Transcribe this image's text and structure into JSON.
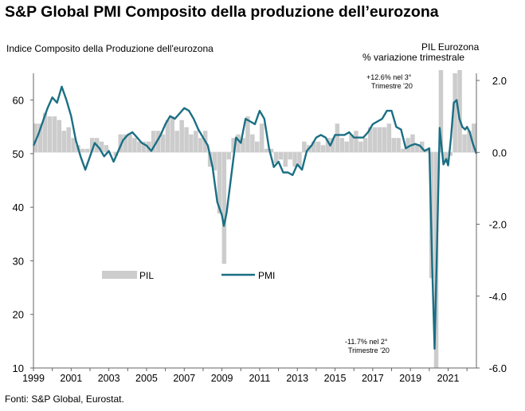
{
  "title": "S&P Global PMI Composito della produzione dell’eurozona",
  "source": "Fonti: S&P Global, Eurostat.",
  "chart_data": {
    "type": "bar+line",
    "title": "S&P Global PMI Composito della produzione dell’eurozona",
    "left_axis_label": "Indice Composito della Produzione dell'eurozona",
    "right_axis_label_line1": "PIL  Eurozona",
    "right_axis_label_line2": "% variazione trimestrale",
    "x_range": [
      1999.0,
      2022.5
    ],
    "x_ticks": [
      "1999",
      "2001",
      "2003",
      "2005",
      "2007",
      "2009",
      "2011",
      "2013",
      "2015",
      "2017",
      "2019",
      "2021"
    ],
    "left_ylim": [
      10,
      65
    ],
    "left_ticks": [
      "10",
      "20",
      "30",
      "40",
      "50",
      "60"
    ],
    "right_ylim": [
      -6.0,
      2.2
    ],
    "right_ticks": [
      "-6.0",
      "-4.0",
      "-2.0",
      "0.0",
      "2.0"
    ],
    "legend": {
      "gdp": "PIL",
      "pmi": "PMI",
      "placement": "middle-left"
    },
    "annotations": [
      {
        "line1": "+12.6%  nel 3°",
        "line2": "Trimestre  '20"
      },
      {
        "line1": "-11.7%  nel 2°",
        "line2": "Trimestre  '20"
      }
    ],
    "series": [
      {
        "name": "PIL",
        "axis": "right",
        "color": "#cccccc",
        "x": [
          1999.0,
          1999.25,
          1999.5,
          1999.75,
          2000.0,
          2000.25,
          2000.5,
          2000.75,
          2001.0,
          2001.25,
          2001.5,
          2001.75,
          2002.0,
          2002.25,
          2002.5,
          2002.75,
          2003.0,
          2003.25,
          2003.5,
          2003.75,
          2004.0,
          2004.25,
          2004.5,
          2004.75,
          2005.0,
          2005.25,
          2005.5,
          2005.75,
          2006.0,
          2006.25,
          2006.5,
          2006.75,
          2007.0,
          2007.25,
          2007.5,
          2007.75,
          2008.0,
          2008.25,
          2008.5,
          2008.75,
          2009.0,
          2009.25,
          2009.5,
          2009.75,
          2010.0,
          2010.25,
          2010.5,
          2010.75,
          2011.0,
          2011.25,
          2011.5,
          2011.75,
          2012.0,
          2012.25,
          2012.5,
          2012.75,
          2013.0,
          2013.25,
          2013.5,
          2013.75,
          2014.0,
          2014.25,
          2014.5,
          2014.75,
          2015.0,
          2015.25,
          2015.5,
          2015.75,
          2016.0,
          2016.25,
          2016.5,
          2016.75,
          2017.0,
          2017.25,
          2017.5,
          2017.75,
          2018.0,
          2018.25,
          2018.5,
          2018.75,
          2019.0,
          2019.25,
          2019.5,
          2019.75,
          2020.0,
          2020.25,
          2020.5,
          2020.75,
          2021.0,
          2021.25,
          2021.5,
          2021.75,
          2022.0,
          2022.25
        ],
        "values": [
          0.8,
          0.8,
          1.1,
          1.0,
          1.0,
          0.9,
          0.6,
          0.7,
          0.4,
          0.2,
          0.1,
          0.1,
          0.4,
          0.4,
          0.3,
          0.2,
          0.0,
          -0.1,
          0.5,
          0.5,
          0.5,
          0.4,
          0.3,
          0.3,
          0.3,
          0.6,
          0.6,
          0.5,
          0.9,
          1.0,
          0.6,
          0.9,
          0.7,
          0.5,
          0.6,
          0.4,
          0.6,
          -0.4,
          -0.5,
          -1.7,
          -3.1,
          -0.2,
          0.4,
          0.5,
          0.4,
          1.0,
          0.5,
          0.3,
          0.8,
          0.1,
          0.1,
          -0.3,
          -0.2,
          -0.4,
          -0.2,
          -0.4,
          -0.4,
          0.3,
          0.2,
          0.3,
          0.3,
          0.2,
          0.4,
          0.4,
          0.8,
          0.4,
          0.3,
          0.5,
          0.6,
          0.3,
          0.4,
          0.7,
          0.7,
          0.7,
          0.7,
          0.8,
          0.4,
          0.4,
          0.1,
          0.4,
          0.5,
          0.2,
          0.3,
          0.1,
          -3.5,
          -11.7,
          12.6,
          -0.3,
          -0.1,
          2.2,
          2.3,
          0.5,
          0.6,
          0.8
        ]
      },
      {
        "name": "PMI",
        "axis": "left",
        "color": "#1a6f84",
        "x": [
          1999.0,
          1999.25,
          1999.5,
          1999.75,
          2000.0,
          2000.25,
          2000.5,
          2000.75,
          2001.0,
          2001.25,
          2001.5,
          2001.75,
          2002.0,
          2002.25,
          2002.5,
          2002.75,
          2003.0,
          2003.25,
          2003.5,
          2003.75,
          2004.0,
          2004.25,
          2004.5,
          2004.75,
          2005.0,
          2005.25,
          2005.5,
          2005.75,
          2006.0,
          2006.25,
          2006.5,
          2006.75,
          2007.0,
          2007.25,
          2007.5,
          2007.75,
          2008.0,
          2008.25,
          2008.5,
          2008.75,
          2009.0,
          2009.1,
          2009.25,
          2009.5,
          2009.75,
          2010.0,
          2010.25,
          2010.5,
          2010.75,
          2011.0,
          2011.25,
          2011.5,
          2011.75,
          2012.0,
          2012.25,
          2012.5,
          2012.75,
          2013.0,
          2013.25,
          2013.5,
          2013.75,
          2014.0,
          2014.25,
          2014.5,
          2014.75,
          2015.0,
          2015.25,
          2015.5,
          2015.75,
          2016.0,
          2016.25,
          2016.5,
          2016.75,
          2017.0,
          2017.25,
          2017.5,
          2017.75,
          2018.0,
          2018.25,
          2018.5,
          2018.75,
          2019.0,
          2019.25,
          2019.5,
          2019.75,
          2020.0,
          2020.15,
          2020.28,
          2020.4,
          2020.55,
          2020.75,
          2020.9,
          2021.0,
          2021.15,
          2021.3,
          2021.45,
          2021.6,
          2021.75,
          2021.9,
          2022.0,
          2022.15,
          2022.3,
          2022.5
        ],
        "values": [
          51.5,
          53.5,
          56.0,
          58.5,
          60.5,
          59.5,
          62.5,
          60.0,
          57.0,
          52.5,
          49.5,
          47.0,
          49.5,
          52.0,
          51.0,
          49.5,
          50.5,
          48.5,
          50.5,
          52.5,
          53.5,
          54.0,
          53.0,
          52.0,
          51.5,
          50.5,
          52.0,
          53.5,
          55.5,
          57.0,
          56.5,
          57.5,
          58.5,
          58.0,
          56.5,
          54.5,
          53.0,
          51.5,
          47.5,
          41.0,
          38.5,
          36.5,
          39.0,
          46.0,
          53.0,
          52.0,
          56.5,
          56.0,
          55.5,
          58.0,
          56.5,
          51.0,
          47.5,
          48.5,
          46.5,
          46.5,
          46.0,
          48.0,
          47.0,
          50.5,
          51.5,
          53.0,
          53.5,
          53.0,
          51.5,
          53.5,
          53.5,
          53.5,
          54.0,
          53.0,
          53.0,
          53.0,
          54.0,
          55.5,
          56.0,
          56.5,
          58.0,
          58.0,
          55.0,
          54.5,
          51.0,
          51.5,
          51.8,
          51.5,
          50.5,
          51.0,
          29.5,
          13.6,
          31.0,
          54.8,
          48.0,
          49.0,
          47.8,
          53.0,
          59.5,
          60.0,
          56.5,
          55.0,
          54.5,
          55.0,
          54.0,
          52.0,
          50.0
        ]
      }
    ]
  }
}
